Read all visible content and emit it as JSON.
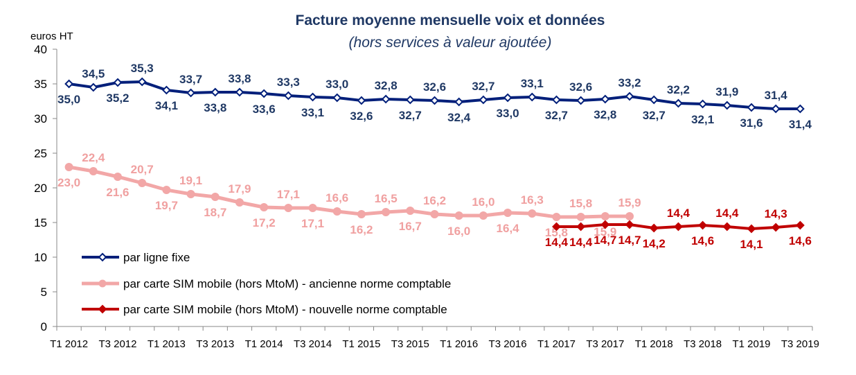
{
  "chart_data": {
    "type": "line",
    "title": "Facture moyenne mensuelle voix et données",
    "subtitle": "(hors services à valeur ajoutée)",
    "ylabel": "euros HT",
    "ylim": [
      0,
      40
    ],
    "yticks": [
      "0",
      "5",
      "10",
      "15",
      "20",
      "25",
      "30",
      "35",
      "40"
    ],
    "x": [
      "T1 2012",
      "T2 2012",
      "T3 2012",
      "T4 2012",
      "T1 2013",
      "T2 2013",
      "T3 2013",
      "T4 2013",
      "T1 2014",
      "T2 2014",
      "T3 2014",
      "T4 2014",
      "T1 2015",
      "T2 2015",
      "T3 2015",
      "T4 2015",
      "T1 2016",
      "T2 2016",
      "T3 2016",
      "T4 2016",
      "T1 2017",
      "T2 2017",
      "T3 2017",
      "T4 2017",
      "T1 2018",
      "T2 2018",
      "T3 2018",
      "T4 2018",
      "T1 2019",
      "T2 2019",
      "T3 2019"
    ],
    "xtick_labels": [
      "T1 2012",
      "T3 2012",
      "T1 2013",
      "T3 2013",
      "T1 2014",
      "T3 2014",
      "T1 2015",
      "T3 2015",
      "T1 2016",
      "T3 2016",
      "T1 2017",
      "T3 2017",
      "T1 2018",
      "T3 2018",
      "T1 2019",
      "T3 2019"
    ],
    "series": [
      {
        "name": "par ligne fixe",
        "color": "#001f7a",
        "label_color": "#1f3864",
        "marker": "diamond-open",
        "values": [
          35.0,
          34.5,
          35.2,
          35.3,
          34.1,
          33.7,
          33.8,
          33.8,
          33.6,
          33.3,
          33.1,
          33.0,
          32.6,
          32.8,
          32.7,
          32.6,
          32.4,
          32.7,
          33.0,
          33.1,
          32.7,
          32.6,
          32.8,
          33.2,
          32.7,
          32.2,
          32.1,
          31.9,
          31.6,
          31.4,
          31.4
        ],
        "labels": [
          "35,0",
          "34,5",
          "35,2",
          "35,3",
          "34,1",
          "33,7",
          "33,8",
          "33,8",
          "33,6",
          "33,3",
          "33,1",
          "33,0",
          "32,6",
          "32,8",
          "32,7",
          "32,6",
          "32,4",
          "32,7",
          "33,0",
          "33,1",
          "32,7",
          "32,6",
          "32,8",
          "33,2",
          "32,7",
          "32,2",
          "32,1",
          "31,9",
          "31,6",
          "31,4",
          "31,4"
        ]
      },
      {
        "name": "par carte SIM mobile (hors MtoM)  - ancienne norme comptable",
        "color": "#f2a7a7",
        "label_color": "#f0a0a0",
        "marker": "circle",
        "values": [
          23.0,
          22.4,
          21.6,
          20.7,
          19.7,
          19.1,
          18.7,
          17.9,
          17.2,
          17.1,
          17.1,
          16.6,
          16.2,
          16.5,
          16.7,
          16.2,
          16.0,
          16.0,
          16.4,
          16.3,
          15.8,
          15.8,
          15.9,
          15.9,
          null,
          null,
          null,
          null,
          null,
          null,
          null
        ],
        "labels": [
          "23,0",
          "22,4",
          "21,6",
          "20,7",
          "19,7",
          "19,1",
          "18,7",
          "17,9",
          "17,2",
          "17,1",
          "17,1",
          "16,6",
          "16,2",
          "16,5",
          "16,7",
          "16,2",
          "16,0",
          "16,0",
          "16,4",
          "16,3",
          "15,8",
          "15,8",
          "15,9",
          "15,9",
          "",
          "",
          "",
          "",
          "",
          "",
          ""
        ]
      },
      {
        "name": "par carte SIM mobile (hors MtoM)  - nouvelle norme comptable",
        "color": "#c00000",
        "label_color": "#c00000",
        "marker": "diamond",
        "values": [
          null,
          null,
          null,
          null,
          null,
          null,
          null,
          null,
          null,
          null,
          null,
          null,
          null,
          null,
          null,
          null,
          null,
          null,
          null,
          null,
          14.4,
          14.4,
          14.7,
          14.7,
          14.2,
          14.4,
          14.6,
          14.4,
          14.1,
          14.3,
          14.6
        ],
        "labels": [
          "",
          "",
          "",
          "",
          "",
          "",
          "",
          "",
          "",
          "",
          "",
          "",
          "",
          "",
          "",
          "",
          "",
          "",
          "",
          "",
          "14,4",
          "14,4",
          "14,7",
          "14,7",
          "14,2",
          "14,4",
          "14,6",
          "14,4",
          "14,1",
          "14,3",
          "14,6"
        ]
      }
    ],
    "legend_position": "bottom-left"
  }
}
